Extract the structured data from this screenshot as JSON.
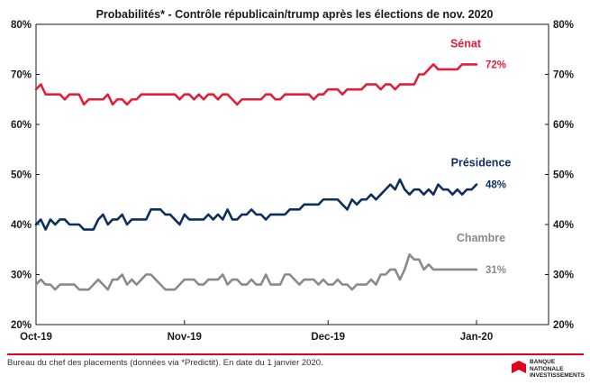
{
  "chart_data": {
    "type": "line",
    "title": "Probabilités* - Contrôle  républicain/trump après les élections de nov.  2020",
    "xlabel": "",
    "ylabel": "",
    "ylim": [
      20,
      80
    ],
    "y_ticks": [
      "20%",
      "30%",
      "40%",
      "50%",
      "60%",
      "70%",
      "80%"
    ],
    "x_ticks": [
      "Oct-19",
      "Nov-19",
      "Dec-19",
      "Jan-20"
    ],
    "x_range": [
      "2019-10-01",
      "2020-01-01"
    ],
    "grid": false,
    "x": [
      "2019-10-01",
      "2019-10-02",
      "2019-10-03",
      "2019-10-04",
      "2019-10-05",
      "2019-10-06",
      "2019-10-07",
      "2019-10-08",
      "2019-10-09",
      "2019-10-10",
      "2019-10-11",
      "2019-10-12",
      "2019-10-13",
      "2019-10-14",
      "2019-10-15",
      "2019-10-16",
      "2019-10-17",
      "2019-10-18",
      "2019-10-19",
      "2019-10-20",
      "2019-10-21",
      "2019-10-22",
      "2019-10-23",
      "2019-10-24",
      "2019-10-25",
      "2019-10-26",
      "2019-10-27",
      "2019-10-28",
      "2019-10-29",
      "2019-10-30",
      "2019-10-31",
      "2019-11-01",
      "2019-11-02",
      "2019-11-03",
      "2019-11-04",
      "2019-11-05",
      "2019-11-06",
      "2019-11-07",
      "2019-11-08",
      "2019-11-09",
      "2019-11-10",
      "2019-11-11",
      "2019-11-12",
      "2019-11-13",
      "2019-11-14",
      "2019-11-15",
      "2019-11-16",
      "2019-11-17",
      "2019-11-18",
      "2019-11-19",
      "2019-11-20",
      "2019-11-21",
      "2019-11-22",
      "2019-11-23",
      "2019-11-24",
      "2019-11-25",
      "2019-11-26",
      "2019-11-27",
      "2019-11-28",
      "2019-11-29",
      "2019-11-30",
      "2019-12-01",
      "2019-12-02",
      "2019-12-03",
      "2019-12-04",
      "2019-12-05",
      "2019-12-06",
      "2019-12-07",
      "2019-12-08",
      "2019-12-09",
      "2019-12-10",
      "2019-12-11",
      "2019-12-12",
      "2019-12-13",
      "2019-12-14",
      "2019-12-15",
      "2019-12-16",
      "2019-12-17",
      "2019-12-18",
      "2019-12-19",
      "2019-12-20",
      "2019-12-21",
      "2019-12-22",
      "2019-12-23",
      "2019-12-24",
      "2019-12-25",
      "2019-12-26",
      "2019-12-27",
      "2019-12-28",
      "2019-12-29",
      "2019-12-30",
      "2019-12-31",
      "2020-01-01"
    ],
    "series": [
      {
        "name": "Sénat",
        "color": "#e0203a",
        "end_label": "72%",
        "values": [
          67,
          68,
          66,
          66,
          66,
          66,
          65,
          66,
          66,
          66,
          64,
          65,
          65,
          65,
          65,
          66,
          64,
          65,
          65,
          64,
          65,
          65,
          66,
          66,
          66,
          66,
          66,
          66,
          66,
          66,
          65,
          66,
          66,
          65,
          66,
          65,
          66,
          66,
          65,
          66,
          66,
          65,
          64,
          65,
          65,
          65,
          65,
          65,
          66,
          66,
          65,
          65,
          66,
          66,
          66,
          66,
          66,
          66,
          65,
          66,
          66,
          67,
          67,
          67,
          66,
          67,
          67,
          67,
          67,
          68,
          68,
          68,
          67,
          68,
          68,
          67,
          68,
          68,
          68,
          68,
          70,
          70,
          71,
          72,
          71,
          71,
          71,
          71,
          71,
          72,
          72,
          72,
          72
        ]
      },
      {
        "name": "Présidence",
        "color": "#0d2f5e",
        "end_label": "48%",
        "values": [
          40,
          41,
          39,
          41,
          40,
          41,
          41,
          40,
          40,
          40,
          39,
          39,
          39,
          41,
          42,
          40,
          41,
          41,
          42,
          40,
          41,
          41,
          41,
          41,
          43,
          43,
          43,
          42,
          42,
          41,
          40,
          42,
          41,
          41,
          41,
          41,
          42,
          41,
          42,
          41,
          43,
          41,
          41,
          42,
          42,
          43,
          42,
          42,
          41,
          42,
          42,
          42,
          42,
          43,
          43,
          43,
          44,
          44,
          44,
          44,
          45,
          45,
          45,
          45,
          44,
          43,
          45,
          44,
          45,
          45,
          46,
          45,
          46,
          47,
          48,
          47,
          49,
          47,
          46,
          47,
          47,
          46,
          47,
          46,
          48,
          47,
          47,
          46,
          47,
          46,
          47,
          47,
          48
        ]
      },
      {
        "name": "Chambre",
        "color": "#8a8a8a",
        "end_label": "31%",
        "values": [
          28,
          29,
          28,
          28,
          27,
          28,
          28,
          28,
          28,
          27,
          27,
          27,
          28,
          29,
          28,
          27,
          29,
          29,
          30,
          28,
          29,
          28,
          29,
          30,
          30,
          29,
          28,
          27,
          27,
          27,
          28,
          29,
          29,
          29,
          28,
          28,
          29,
          29,
          29,
          30,
          28,
          29,
          29,
          28,
          28,
          29,
          28,
          28,
          30,
          28,
          28,
          28,
          30,
          30,
          29,
          28,
          29,
          29,
          29,
          28,
          29,
          28,
          28,
          29,
          28,
          28,
          27,
          28,
          28,
          28,
          29,
          28,
          30,
          30,
          31,
          31,
          29,
          31,
          34,
          33,
          33,
          31,
          32,
          31,
          31,
          31,
          31,
          31,
          31,
          31,
          31,
          31,
          31
        ]
      }
    ]
  },
  "footer": {
    "note": "Bureau du chef des placements (données via *Predictit). En date du 1 janvier 2020."
  },
  "logo": {
    "text": "BANQUE\nNATIONALE\nINVESTISSEMENTS",
    "color": "#e2001a"
  }
}
